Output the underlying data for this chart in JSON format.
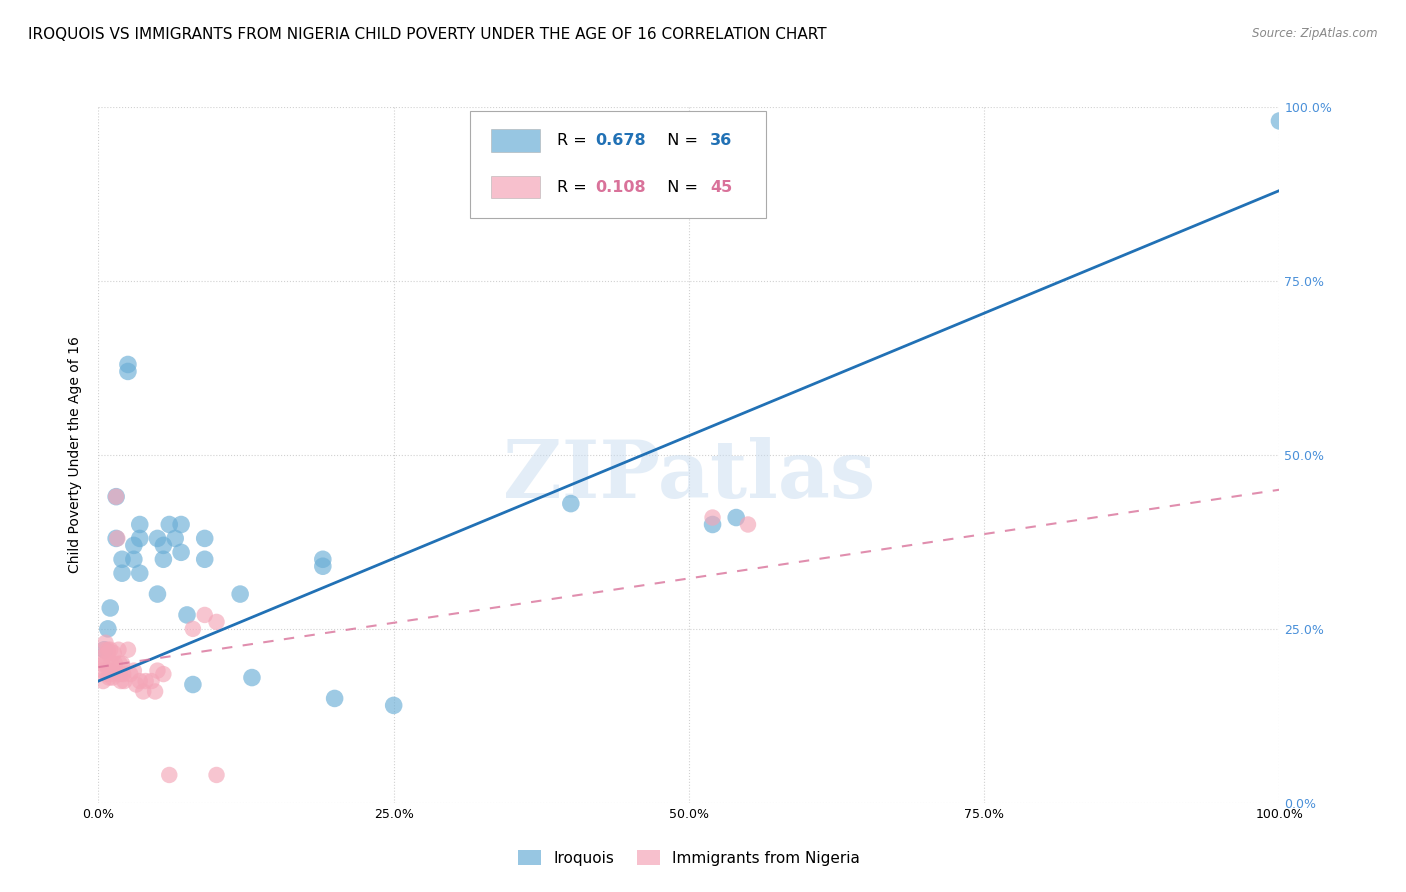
{
  "title": "IROQUOIS VS IMMIGRANTS FROM NIGERIA CHILD POVERTY UNDER THE AGE OF 16 CORRELATION CHART",
  "source": "Source: ZipAtlas.com",
  "ylabel": "Child Poverty Under the Age of 16",
  "xlim": [
    0,
    1
  ],
  "ylim": [
    0,
    1
  ],
  "xticks": [
    0.0,
    0.25,
    0.5,
    0.75,
    1.0
  ],
  "yticks": [
    0.0,
    0.25,
    0.5,
    0.75,
    1.0
  ],
  "xtick_labels": [
    "0.0%",
    "25.0%",
    "50.0%",
    "75.0%",
    "100.0%"
  ],
  "ytick_labels": [
    "0.0%",
    "25.0%",
    "50.0%",
    "75.0%",
    "100.0%"
  ],
  "legend2_labels": [
    "Iroquois",
    "Immigrants from Nigeria"
  ],
  "legend2_colors": [
    "#6baed6",
    "#f4a6b8"
  ],
  "watermark": "ZIPatlas",
  "iroquois_color": "#6baed6",
  "nigeria_color": "#f4a6b8",
  "iroquois_line_color": "#2171b5",
  "nigeria_line_color": "#d9729a",
  "iroquois_R": 0.678,
  "iroquois_N": 36,
  "nigeria_R": 0.108,
  "nigeria_N": 45,
  "iroquois_points": [
    [
      0.005,
      0.22
    ],
    [
      0.008,
      0.25
    ],
    [
      0.01,
      0.28
    ],
    [
      0.015,
      0.44
    ],
    [
      0.015,
      0.38
    ],
    [
      0.02,
      0.35
    ],
    [
      0.02,
      0.33
    ],
    [
      0.025,
      0.62
    ],
    [
      0.025,
      0.63
    ],
    [
      0.03,
      0.37
    ],
    [
      0.03,
      0.35
    ],
    [
      0.035,
      0.38
    ],
    [
      0.035,
      0.4
    ],
    [
      0.035,
      0.33
    ],
    [
      0.05,
      0.38
    ],
    [
      0.05,
      0.3
    ],
    [
      0.055,
      0.37
    ],
    [
      0.055,
      0.35
    ],
    [
      0.06,
      0.4
    ],
    [
      0.065,
      0.38
    ],
    [
      0.07,
      0.4
    ],
    [
      0.07,
      0.36
    ],
    [
      0.075,
      0.27
    ],
    [
      0.08,
      0.17
    ],
    [
      0.09,
      0.38
    ],
    [
      0.09,
      0.35
    ],
    [
      0.12,
      0.3
    ],
    [
      0.13,
      0.18
    ],
    [
      0.19,
      0.35
    ],
    [
      0.19,
      0.34
    ],
    [
      0.2,
      0.15
    ],
    [
      0.25,
      0.14
    ],
    [
      0.4,
      0.43
    ],
    [
      0.52,
      0.4
    ],
    [
      0.54,
      0.41
    ],
    [
      1.0,
      0.98
    ]
  ],
  "nigeria_points": [
    [
      0.003,
      0.19
    ],
    [
      0.003,
      0.2
    ],
    [
      0.004,
      0.21
    ],
    [
      0.004,
      0.175
    ],
    [
      0.005,
      0.22
    ],
    [
      0.006,
      0.23
    ],
    [
      0.006,
      0.2
    ],
    [
      0.007,
      0.185
    ],
    [
      0.008,
      0.22
    ],
    [
      0.008,
      0.215
    ],
    [
      0.009,
      0.19
    ],
    [
      0.009,
      0.18
    ],
    [
      0.01,
      0.22
    ],
    [
      0.011,
      0.2
    ],
    [
      0.011,
      0.185
    ],
    [
      0.012,
      0.18
    ],
    [
      0.013,
      0.215
    ],
    [
      0.014,
      0.2
    ],
    [
      0.015,
      0.44
    ],
    [
      0.016,
      0.38
    ],
    [
      0.017,
      0.22
    ],
    [
      0.018,
      0.2
    ],
    [
      0.018,
      0.185
    ],
    [
      0.019,
      0.175
    ],
    [
      0.02,
      0.2
    ],
    [
      0.021,
      0.185
    ],
    [
      0.022,
      0.175
    ],
    [
      0.025,
      0.22
    ],
    [
      0.027,
      0.185
    ],
    [
      0.03,
      0.19
    ],
    [
      0.032,
      0.17
    ],
    [
      0.035,
      0.175
    ],
    [
      0.038,
      0.16
    ],
    [
      0.04,
      0.175
    ],
    [
      0.045,
      0.175
    ],
    [
      0.048,
      0.16
    ],
    [
      0.05,
      0.19
    ],
    [
      0.055,
      0.185
    ],
    [
      0.06,
      0.04
    ],
    [
      0.1,
      0.26
    ],
    [
      0.52,
      0.41
    ],
    [
      0.55,
      0.4
    ],
    [
      0.08,
      0.25
    ],
    [
      0.09,
      0.27
    ],
    [
      0.1,
      0.04
    ]
  ],
  "iroquois_line": {
    "x0": 0.0,
    "x1": 1.0,
    "y0": 0.175,
    "y1": 0.88
  },
  "nigeria_line": {
    "x0": 0.0,
    "x1": 1.0,
    "y0": 0.195,
    "y1": 0.45
  },
  "background_color": "#ffffff",
  "grid_color": "#cccccc",
  "title_fontsize": 11,
  "axis_label_fontsize": 10,
  "tick_fontsize": 9,
  "right_tick_color": "#4a90d9"
}
